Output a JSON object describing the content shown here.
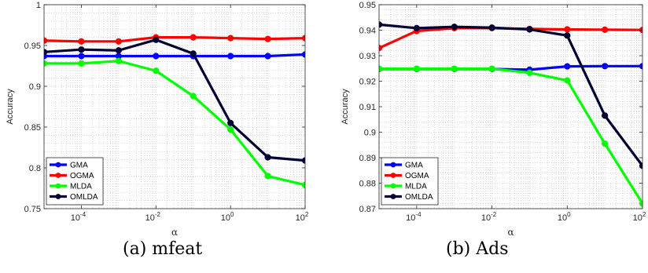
{
  "chart_data": [
    {
      "type": "line",
      "caption": "(a) mfeat",
      "xlabel": "α",
      "ylabel": "Accuracy",
      "xscale": "log",
      "xlim": [
        1e-05,
        100
      ],
      "ylim": [
        0.75,
        1
      ],
      "yticks": [
        "0.75",
        "0.8",
        "0.85",
        "0.9",
        "0.95",
        "1"
      ],
      "xticks": [
        {
          "value": 0.0001,
          "base": "10",
          "exp": "-4"
        },
        {
          "value": 0.01,
          "base": "10",
          "exp": "-2"
        },
        {
          "value": 1,
          "base": "10",
          "exp": "0"
        },
        {
          "value": 100,
          "base": "10",
          "exp": "2"
        }
      ],
      "grid": true,
      "legend_position": "bottom-left",
      "x": [
        1e-05,
        0.0001,
        0.001,
        0.01,
        0.1,
        1,
        10,
        100
      ],
      "series": [
        {
          "name": "GMA",
          "color": "#0000ff",
          "values": [
            0.937,
            0.937,
            0.937,
            0.937,
            0.937,
            0.937,
            0.937,
            0.939
          ]
        },
        {
          "name": "OGMA",
          "color": "#ff0000",
          "values": [
            0.956,
            0.955,
            0.955,
            0.96,
            0.96,
            0.959,
            0.958,
            0.959
          ]
        },
        {
          "name": "MLDA",
          "color": "#00ff00",
          "values": [
            0.928,
            0.928,
            0.931,
            0.919,
            0.888,
            0.847,
            0.79,
            0.779
          ]
        },
        {
          "name": "OMLDA",
          "color": "#000033",
          "values": [
            0.942,
            0.945,
            0.944,
            0.957,
            0.94,
            0.855,
            0.813,
            0.809
          ]
        }
      ]
    },
    {
      "type": "line",
      "caption": "(b) Ads",
      "xlabel": "α",
      "ylabel": "Accuracy",
      "xscale": "log",
      "xlim": [
        1e-05,
        100
      ],
      "ylim": [
        0.87,
        0.95
      ],
      "yticks": [
        "0.87",
        "0.88",
        "0.89",
        "0.9",
        "0.91",
        "0.92",
        "0.93",
        "0.94",
        "0.95"
      ],
      "xticks": [
        {
          "value": 0.0001,
          "base": "10",
          "exp": "-4"
        },
        {
          "value": 0.01,
          "base": "10",
          "exp": "-2"
        },
        {
          "value": 1,
          "base": "10",
          "exp": "0"
        },
        {
          "value": 100,
          "base": "10",
          "exp": "2"
        }
      ],
      "grid": true,
      "legend_position": "bottom-left",
      "x": [
        1e-05,
        0.0001,
        0.001,
        0.01,
        0.1,
        1,
        10,
        100
      ],
      "series": [
        {
          "name": "GMA",
          "color": "#0000ff",
          "values": [
            0.9248,
            0.9248,
            0.9248,
            0.9248,
            0.9245,
            0.9258,
            0.9259,
            0.9259
          ]
        },
        {
          "name": "OGMA",
          "color": "#ff0000",
          "values": [
            0.933,
            0.9397,
            0.9408,
            0.9408,
            0.9405,
            0.9403,
            0.9402,
            0.9401
          ]
        },
        {
          "name": "MLDA",
          "color": "#00ff00",
          "values": [
            0.9249,
            0.9249,
            0.9249,
            0.9249,
            0.9233,
            0.9203,
            0.8955,
            0.872
          ]
        },
        {
          "name": "OMLDA",
          "color": "#000033",
          "values": [
            0.9422,
            0.9408,
            0.9413,
            0.941,
            0.9403,
            0.9379,
            0.9065,
            0.8868
          ]
        }
      ]
    }
  ]
}
